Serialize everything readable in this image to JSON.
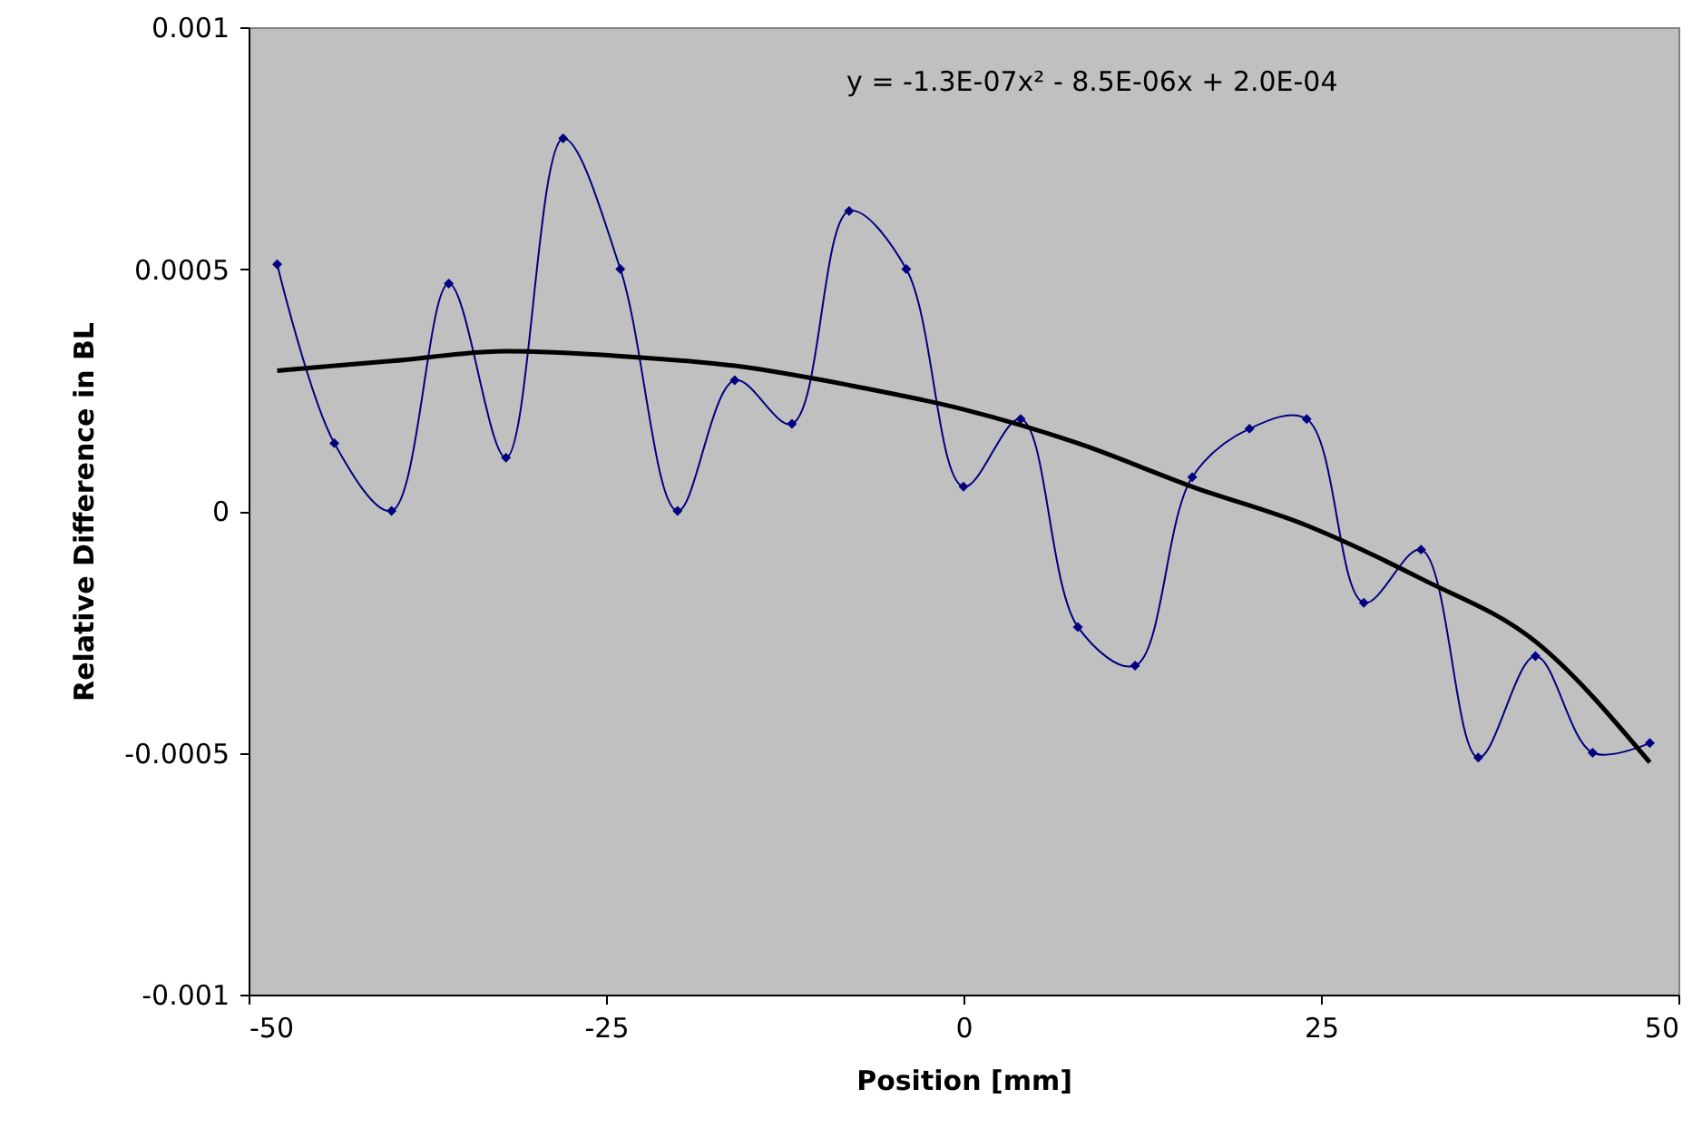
{
  "chart_data": {
    "type": "line",
    "xlabel": "Position [mm]",
    "ylabel": "Relative Difference in BL",
    "annotations": [
      "y = -1.3E-07x² - 8.5E-06x + 2.0E-04"
    ],
    "xlim": [
      -50,
      50
    ],
    "xticks": [
      -50,
      -25,
      0,
      25,
      50
    ],
    "ylim": [
      -0.001,
      0.001
    ],
    "yticks": [
      -0.001,
      -0.0005,
      0,
      0.0005,
      0.001
    ],
    "marker": "diamond",
    "series": [
      {
        "color": "#000080",
        "x": [
          -48,
          -44,
          -40,
          -36,
          -32,
          -28,
          -24,
          -20,
          -16,
          -12,
          -8,
          -4,
          0,
          4,
          8,
          12,
          16,
          20,
          24,
          28,
          32,
          36,
          40,
          44,
          48
        ],
        "values": [
          0.00051,
          0.00014,
          0,
          0.00047,
          0.00011,
          0.00077,
          0.0005,
          0,
          0.00027,
          0.00018,
          0.00062,
          0.0005,
          5e-05,
          0.00019,
          -0.00024,
          -0.00032,
          7e-05,
          0.00017,
          0.00019,
          -0.00019,
          -8e-05,
          -0.00051,
          -0.0003,
          -0.0005,
          -0.00048
        ]
      },
      {
        "type": "line",
        "color": "#000000",
        "marker": "none",
        "x": [
          -48,
          -40,
          -32,
          -24,
          -16,
          -8,
          0,
          8,
          16,
          24,
          32,
          40,
          48
        ],
        "values": [
          0.00029,
          0.00031,
          0.00033,
          0.00032,
          0.0003,
          0.00026,
          0.00021,
          0.00014,
          5e-05,
          -3e-05,
          -0.00014,
          -0.00027,
          -0.00052
        ]
      }
    ]
  }
}
